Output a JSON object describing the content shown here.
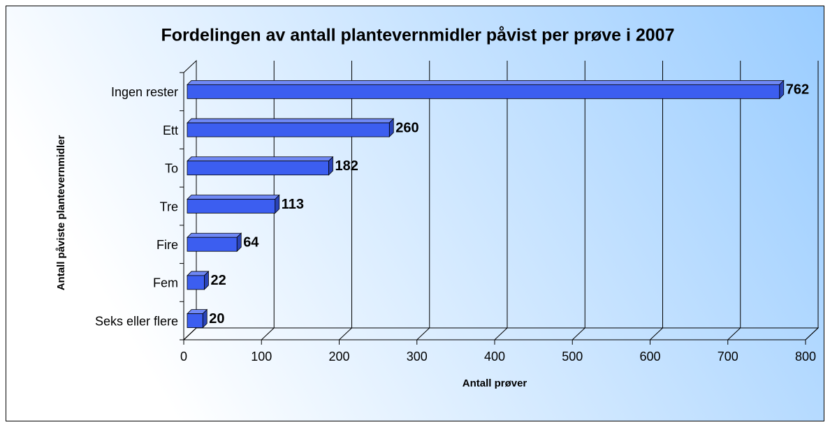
{
  "chart_data": {
    "type": "bar",
    "orientation": "horizontal",
    "title": "Fordelingen av antall plantevernmidler påvist per prøve i 2007",
    "x_label": "Antall prøver",
    "y_label": "Antall påviste plantevernmidler",
    "categories": [
      "Ingen rester",
      "Ett",
      "To",
      "Tre",
      "Fire",
      "Fem",
      "Seks eller flere"
    ],
    "values": [
      762,
      260,
      182,
      113,
      64,
      22,
      20
    ],
    "color": "#3c5ef0",
    "xlim": [
      0,
      800
    ],
    "xticks": [
      0,
      100,
      200,
      300,
      400,
      500,
      600,
      700,
      800
    ],
    "grid": true
  }
}
